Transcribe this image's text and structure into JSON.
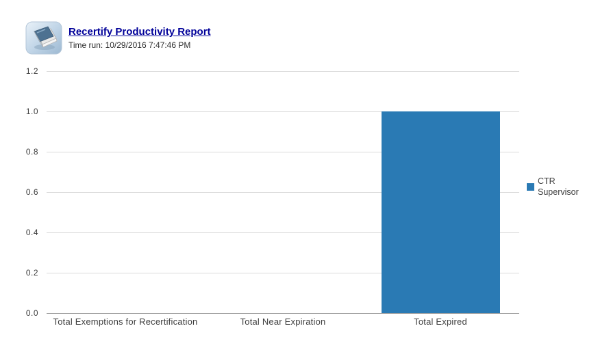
{
  "header": {
    "title": "Recertify Productivity Report",
    "time_run": "Time run: 10/29/2016 7:47:46 PM"
  },
  "colors": {
    "series_blue": "#2a7ab4",
    "title_blue": "#000099",
    "gridline": "#dadada",
    "axis": "#9a9a9a",
    "text": "#3d3d3d"
  },
  "icons": {
    "header_icon": "report-book-icon",
    "legend_swatch": "legend-swatch-icon"
  },
  "chart_data": {
    "type": "bar",
    "categories": [
      "Total Exemptions for Recertification",
      "Total Near Expiration",
      "Total Expired"
    ],
    "series": [
      {
        "name": "CTR Supervisor",
        "color": "#2a7ab4",
        "values": [
          0,
          0,
          1.0
        ]
      }
    ],
    "ylim": [
      0,
      1.2
    ],
    "yticks": [
      0.0,
      0.2,
      0.4,
      0.6,
      0.8,
      1.0,
      1.2
    ],
    "grid": true,
    "legend_position": "right",
    "xlabel": "",
    "ylabel": ""
  }
}
